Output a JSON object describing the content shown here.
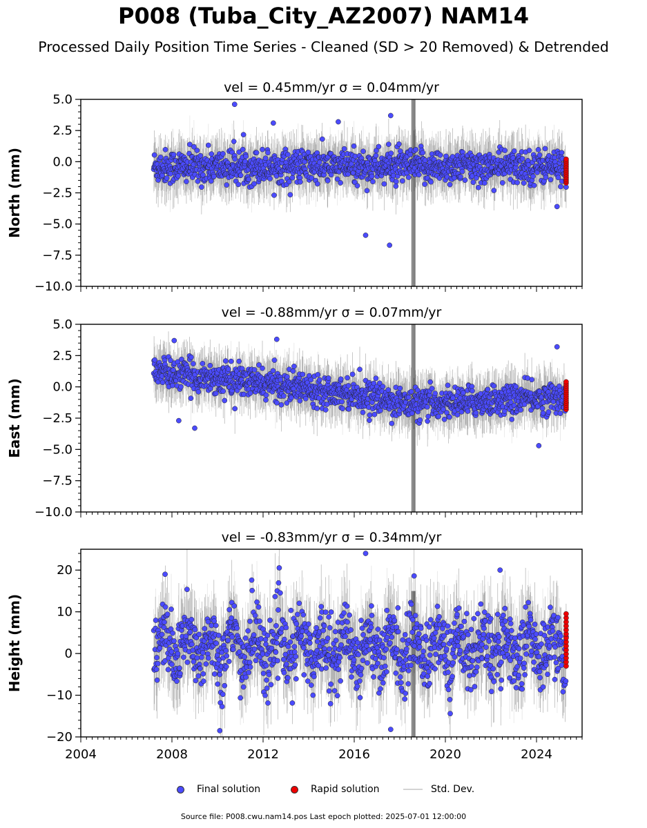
{
  "title": "P008 (Tuba_City_AZ2007) NAM14",
  "subtitle": "Processed Daily Position Time Series - Cleaned (SD > 20 Removed) & Detrended",
  "legend": {
    "final_label": "Final solution",
    "rapid_label": "Rapid solution",
    "std_label": "Std. Dev.",
    "final_color": "#4b4bff",
    "rapid_color": "#ee0000",
    "std_color": "#d3d3d3"
  },
  "footer": "Source file: P008.cwu.nam14.pos  Last epoch plotted: 2025-07-01 12:00:00",
  "chart_data": [
    {
      "type": "scatter",
      "title": "vel = 0.45mm/yr   σ = 0.04mm/yr",
      "ylabel": "North (mm)",
      "xlim": [
        2004,
        2026
      ],
      "ylim": [
        -10,
        5
      ],
      "yticks": [
        5.0,
        2.5,
        0.0,
        -2.5,
        -5.0,
        -7.5,
        -10.0
      ],
      "ytick_labels": [
        "5.0",
        "2.5",
        "0.0",
        "−2.5",
        "−5.0",
        "−7.5",
        "−10.0"
      ],
      "grid": false,
      "series": [
        {
          "name": "Final solution",
          "x_range": [
            2007.2,
            2025.3
          ],
          "mean": -0.4,
          "spread": 0.9,
          "outliers": [
            [
              2010.75,
              4.6
            ],
            [
              2012.45,
              3.1
            ],
            [
              2015.3,
              3.2
            ],
            [
              2017.6,
              3.7
            ],
            [
              2016.5,
              -5.9
            ],
            [
              2017.55,
              -6.7
            ],
            [
              2024.9,
              -3.6
            ]
          ]
        },
        {
          "name": "Rapid solution",
          "x": 2025.3,
          "y_range": [
            -1.7,
            0.2
          ]
        }
      ],
      "std_dev_band": {
        "x_range": [
          2007.2,
          2025.3
        ],
        "half_width": 1.8,
        "spike_x": 2018.6,
        "spike_range": [
          -10,
          5
        ]
      }
    },
    {
      "type": "scatter",
      "title": "vel = -0.88mm/yr   σ = 0.07mm/yr",
      "ylabel": "East (mm)",
      "xlim": [
        2004,
        2026
      ],
      "ylim": [
        -10,
        5
      ],
      "yticks": [
        5.0,
        2.5,
        0.0,
        -2.5,
        -5.0,
        -7.5,
        -10.0
      ],
      "ytick_labels": [
        "5.0",
        "2.5",
        "0.0",
        "−2.5",
        "−5.0",
        "−7.5",
        "−10.0"
      ],
      "grid": false,
      "series": [
        {
          "name": "Final solution",
          "x_range": [
            2007.2,
            2025.3
          ],
          "trend": [
            [
              2007.2,
              1.2
            ],
            [
              2015.5,
              -0.4
            ],
            [
              2018.5,
              -1.4
            ],
            [
              2025.3,
              -0.8
            ]
          ],
          "spread": 0.8,
          "outliers": [
            [
              2008.1,
              3.7
            ],
            [
              2012.6,
              3.8
            ],
            [
              2009.0,
              -3.3
            ],
            [
              2008.3,
              -2.7
            ],
            [
              2024.1,
              -4.7
            ],
            [
              2024.9,
              3.2
            ]
          ]
        },
        {
          "name": "Rapid solution",
          "x": 2025.3,
          "y_range": [
            -1.8,
            0.4
          ]
        }
      ],
      "std_dev_band": {
        "x_range": [
          2007.2,
          2025.3
        ],
        "half_width": 1.7,
        "spike_x": 2018.6,
        "spike_range": [
          -10,
          5
        ]
      }
    },
    {
      "type": "scatter",
      "title": "vel = -0.83mm/yr   σ = 0.34mm/yr",
      "ylabel": "Height (mm)",
      "xlim": [
        2004,
        2026
      ],
      "ylim": [
        -20,
        25
      ],
      "yticks": [
        20,
        10,
        0,
        -10,
        -20
      ],
      "ytick_labels": [
        "20",
        "10",
        "0",
        "−10",
        "−20"
      ],
      "xticks": [
        2004,
        2008,
        2012,
        2016,
        2020,
        2024
      ],
      "xtick_labels": [
        "2004",
        "2008",
        "2012",
        "2016",
        "2020",
        "2024"
      ],
      "grid": false,
      "series": [
        {
          "name": "Final solution",
          "x_range": [
            2007.2,
            2025.3
          ],
          "mean": 1.5,
          "spread": 5.5,
          "seasonal_amplitude": 3.5,
          "outliers": [
            [
              2007.7,
              19.0
            ],
            [
              2016.5,
              24.0
            ],
            [
              2022.4,
              20.0
            ],
            [
              2010.1,
              -18.5
            ],
            [
              2017.6,
              -18.2
            ],
            [
              2011.5,
              17.6
            ]
          ]
        },
        {
          "name": "Rapid solution",
          "x": 2025.3,
          "y_range": [
            -3.0,
            9.5
          ]
        }
      ],
      "std_dev_band": {
        "x_range": [
          2007.2,
          2025.3
        ],
        "half_width": 8.0,
        "spike_x": 2018.6,
        "spike_range": [
          -20,
          15
        ]
      }
    }
  ]
}
